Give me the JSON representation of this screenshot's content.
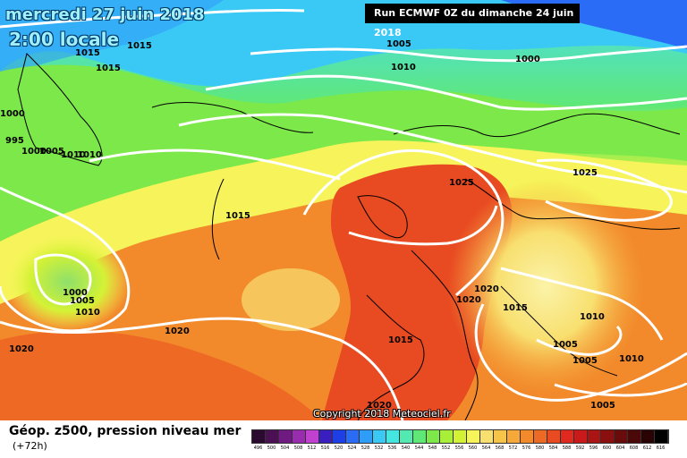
{
  "header": {
    "date": "mercredi 27 juin 2018",
    "time": "2:00 locale",
    "run": "Run ECMWF 0Z du dimanche 24 juin 2018"
  },
  "copyright": "Copyright 2018 Meteociel.fr",
  "footer": {
    "title": "Géop. z500, pression niveau mer",
    "subtitle": "(+72h)"
  },
  "legend": {
    "values": [
      "496",
      "500",
      "504",
      "508",
      "512",
      "516",
      "520",
      "524",
      "528",
      "532",
      "536",
      "540",
      "544",
      "548",
      "552",
      "556",
      "560",
      "564",
      "568",
      "572",
      "576",
      "580",
      "584",
      "588",
      "592",
      "596",
      "600",
      "604",
      "608",
      "612",
      "616"
    ],
    "colors": [
      "#2a0a2e",
      "#4b0f54",
      "#6f1a80",
      "#9a2cb0",
      "#c040d0",
      "#3a1ec0",
      "#1e3ee6",
      "#2a6cf6",
      "#2f9df8",
      "#3ac9f5",
      "#46e6e0",
      "#52eab0",
      "#5fe878",
      "#7de84a",
      "#a9ee38",
      "#d4f235",
      "#f6f45a",
      "#f8e070",
      "#f7c44a",
      "#f6a838",
      "#f28a2c",
      "#ee6a24",
      "#e84a22",
      "#e02a20",
      "#c81a1a",
      "#aa1414",
      "#8a1010",
      "#6a0c0c",
      "#4a0808",
      "#2a0404",
      "#000000"
    ]
  },
  "isobars": [
    "1015",
    "1015",
    "1015",
    "1005",
    "1010",
    "1000",
    "1000",
    "995",
    "1005",
    "1010",
    "1000",
    "1010",
    "1015",
    "1025",
    "1025",
    "1000",
    "1005",
    "1010",
    "1020",
    "1020",
    "1020",
    "1015",
    "1015",
    "1010",
    "1005",
    "1005",
    "1010",
    "1020",
    "1005",
    "1020"
  ]
}
